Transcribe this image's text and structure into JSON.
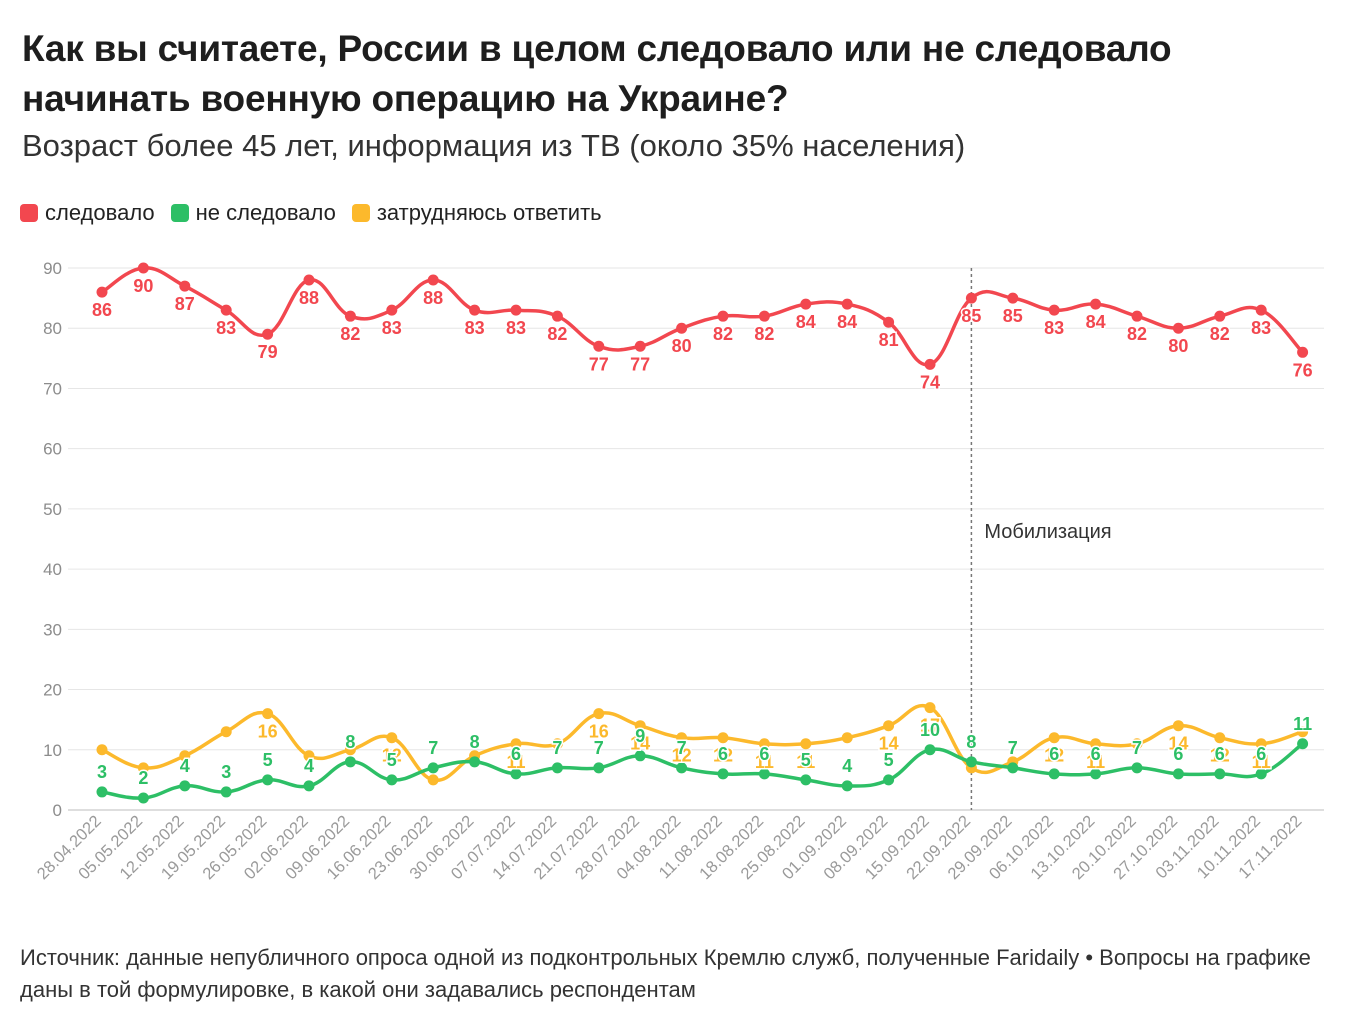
{
  "title": "Как вы считаете, России в целом следовало или не следовало начинать военную операцию на Украине?",
  "subtitle": "Возраст более 45 лет, информация из ТВ (около 35% населения)",
  "source": "Источник: данные непубличного опроса одной из подконтрольных Кремлю служб, полученные Faridaily • Вопросы на графике даны в той формулировке, в какой они задавались респондентам",
  "chart_data": {
    "type": "line",
    "x": [
      "28.04.2022",
      "05.05.2022",
      "12.05.2022",
      "19.05.2022",
      "26.05.2022",
      "02.06.2022",
      "09.06.2022",
      "16.06.2022",
      "23.06.2022",
      "30.06.2022",
      "07.07.2022",
      "14.07.2022",
      "21.07.2022",
      "28.07.2022",
      "04.08.2022",
      "11.08.2022",
      "18.08.2022",
      "25.08.2022",
      "01.09.2022",
      "08.09.2022",
      "15.09.2022",
      "22.09.2022",
      "29.09.2022",
      "06.10.2022",
      "13.10.2022",
      "20.10.2022",
      "27.10.2022",
      "03.11.2022",
      "10.11.2022",
      "17.11.2022"
    ],
    "ylim": [
      0,
      90
    ],
    "yticks": [
      0,
      10,
      20,
      30,
      40,
      50,
      60,
      70,
      80,
      90
    ],
    "grid": true,
    "legend_position": "top-left",
    "series": [
      {
        "name": "следовало",
        "color": "#f2474f",
        "values": [
          86,
          90,
          87,
          83,
          79,
          88,
          82,
          83,
          88,
          83,
          83,
          82,
          77,
          77,
          80,
          82,
          82,
          84,
          84,
          81,
          74,
          85,
          85,
          83,
          84,
          82,
          80,
          82,
          83,
          76
        ]
      },
      {
        "name": "не следовало",
        "color": "#2dbf66",
        "values": [
          3,
          2,
          4,
          3,
          5,
          4,
          8,
          5,
          7,
          8,
          6,
          7,
          7,
          9,
          7,
          6,
          6,
          5,
          4,
          5,
          10,
          8,
          7,
          6,
          6,
          7,
          6,
          6,
          6,
          11
        ]
      },
      {
        "name": "затрудняюсь ответить",
        "color": "#fcb92c",
        "values": [
          10,
          7,
          9,
          13,
          16,
          9,
          10,
          12,
          5,
          9,
          11,
          11,
          16,
          14,
          12,
          12,
          11,
          11,
          12,
          14,
          17,
          7,
          8,
          12,
          11,
          11,
          14,
          12,
          11,
          13
        ]
      }
    ],
    "red_labels": [
      "86",
      "90",
      "87",
      "83",
      "79",
      "88",
      "82",
      "83",
      "88",
      "83",
      "83",
      "82",
      "77",
      "77",
      "80",
      "82",
      "82",
      "84",
      "84",
      "81",
      "74",
      "85",
      "85",
      "83",
      "84",
      "82",
      "80",
      "82",
      "83",
      "76"
    ],
    "yellow_labels": [
      "",
      "",
      "",
      "",
      "16",
      "",
      "",
      "12",
      "",
      "",
      "11",
      "",
      "16",
      "14",
      "12",
      "12",
      "11",
      "11",
      "",
      "14",
      "17",
      "",
      "",
      "12",
      "11",
      "",
      "14",
      "12",
      "11",
      ""
    ],
    "green_labels": [
      "3",
      "2",
      "4",
      "3",
      "5",
      "4",
      "8",
      "5",
      "7",
      "8",
      "6",
      "7",
      "7",
      "9",
      "7",
      "6",
      "6",
      "5",
      "4",
      "5",
      "10",
      "8",
      "7",
      "6",
      "6",
      "7",
      "6",
      "6",
      "6",
      "11"
    ],
    "annotation": {
      "x": "22.09.2022",
      "text": "Мобилизация"
    }
  }
}
